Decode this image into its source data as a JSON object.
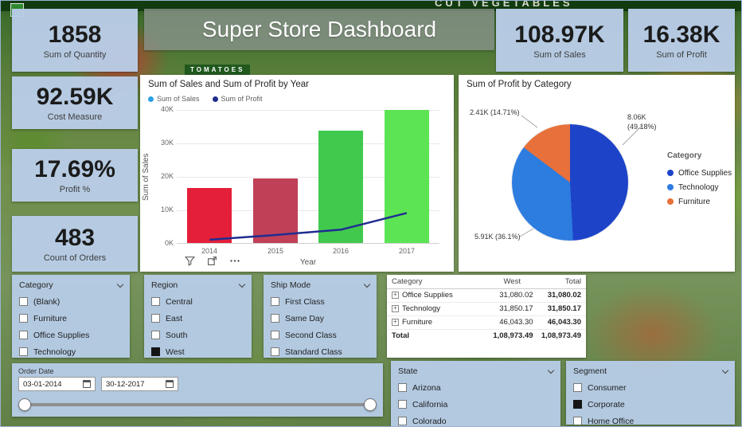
{
  "header": {
    "title": "Super Store Dashboard"
  },
  "background": {
    "banner_top": "CUT VEGETABLES",
    "sign": "TOMATOES"
  },
  "kpis": {
    "quantity": {
      "value": "1858",
      "label": "Sum of Quantity"
    },
    "sales": {
      "value": "108.97K",
      "label": "Sum of Sales"
    },
    "profit": {
      "value": "16.38K",
      "label": "Sum of Profit"
    },
    "cost": {
      "value": "92.59K",
      "label": "Cost Measure"
    },
    "profit_pct": {
      "value": "17.69%",
      "label": "Profit %"
    },
    "orders": {
      "value": "483",
      "label": "Count of Orders"
    }
  },
  "chart_data": [
    {
      "type": "bar",
      "title": "Sum of Sales and Sum of Profit by Year",
      "categories": [
        "2014",
        "2015",
        "2016",
        "2017"
      ],
      "series": [
        {
          "name": "Sum of Sales",
          "type": "bar",
          "values": [
            16500,
            19300,
            33500,
            39670
          ],
          "colors": [
            "#e41f39",
            "#c04057",
            "#41c94e",
            "#5ce455"
          ]
        },
        {
          "name": "Sum of Profit",
          "type": "line",
          "values": [
            990,
            2400,
            4000,
            8990
          ],
          "color": "#1f2d8f"
        }
      ],
      "legend": [
        {
          "label": "Sum of Sales",
          "color": "#2aa0e8"
        },
        {
          "label": "Sum of Profit",
          "color": "#1f2d8f"
        }
      ],
      "legend_position": "top",
      "xlabel": "Year",
      "ylabel": "Sum of Sales",
      "ylim": [
        0,
        40000
      ],
      "yticks": [
        "0K",
        "10K",
        "20K",
        "30K",
        "40K"
      ],
      "grid": true
    },
    {
      "type": "pie",
      "title": "Sum of Profit by Category",
      "legend_title": "Category",
      "legend_position": "right",
      "slices": [
        {
          "label": "Office Supplies",
          "value": "8.06K",
          "pct": 49.18,
          "color": "#1d44c8",
          "callout": "8.06K (49.18%)"
        },
        {
          "label": "Technology",
          "value": "5.91K",
          "pct": 36.1,
          "color": "#2d7ce0",
          "callout": "5.91K (36.1%)"
        },
        {
          "label": "Furniture",
          "value": "2.41K",
          "pct": 14.71,
          "color": "#e8703a",
          "callout": "2.41K (14.71%)"
        }
      ]
    }
  ],
  "icons": {
    "slicer_dropdown": "chevron-down",
    "calendar": "calendar",
    "visual_filter": "filter",
    "visual_focus": "focus-mode",
    "visual_more": "more-options",
    "matrix_expand": "plus-box"
  },
  "slicers": {
    "category": {
      "title": "Category",
      "items": [
        {
          "label": "(Blank)",
          "checked": false
        },
        {
          "label": "Furniture",
          "checked": false
        },
        {
          "label": "Office Supplies",
          "checked": false
        },
        {
          "label": "Technology",
          "checked": false
        }
      ]
    },
    "region": {
      "title": "Region",
      "items": [
        {
          "label": "Central",
          "checked": false
        },
        {
          "label": "East",
          "checked": false
        },
        {
          "label": "South",
          "checked": false
        },
        {
          "label": "West",
          "checked": true
        }
      ]
    },
    "ship_mode": {
      "title": "Ship Mode",
      "items": [
        {
          "label": "First Class",
          "checked": false
        },
        {
          "label": "Same Day",
          "checked": false
        },
        {
          "label": "Second Class",
          "checked": false
        },
        {
          "label": "Standard Class",
          "checked": false
        }
      ]
    },
    "state": {
      "title": "State",
      "items": [
        {
          "label": "Arizona",
          "checked": false
        },
        {
          "label": "California",
          "checked": false
        },
        {
          "label": "Colorado",
          "checked": false
        }
      ]
    },
    "segment": {
      "title": "Segment",
      "items": [
        {
          "label": "Consumer",
          "checked": false
        },
        {
          "label": "Corporate",
          "checked": true
        },
        {
          "label": "Home Office",
          "checked": false
        }
      ]
    }
  },
  "matrix": {
    "columns": [
      "Category",
      "West",
      "Total"
    ],
    "rows": [
      {
        "label": "Office Supplies",
        "west": "31,080.02",
        "total": "31,080.02"
      },
      {
        "label": "Technology",
        "west": "31,850.17",
        "total": "31,850.17"
      },
      {
        "label": "Furniture",
        "west": "46,043.30",
        "total": "46,043.30"
      }
    ],
    "total": {
      "label": "Total",
      "west": "1,08,973.49",
      "total": "1,08,973.49"
    }
  },
  "order_date": {
    "label": "Order Date",
    "start": "03-01-2014",
    "end": "30-12-2017"
  }
}
